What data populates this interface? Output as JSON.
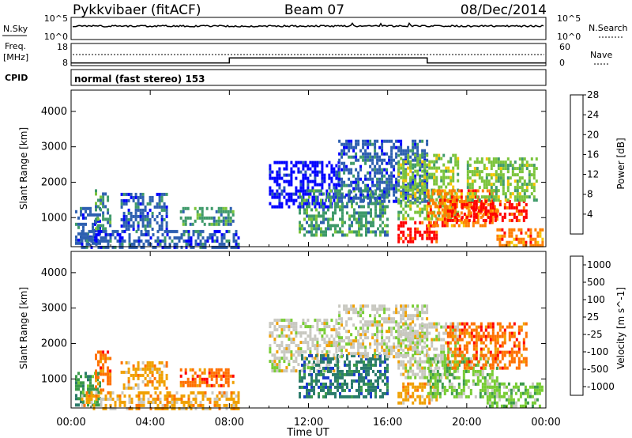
{
  "header": {
    "radar": "Pykkvibaer (fitACF)",
    "beam": "Beam 07",
    "date": "08/Dec/2014"
  },
  "sky_panel": {
    "left_label": "N.Sky",
    "right_label": "N.Search",
    "left_ticks": [
      "10^5",
      "10^0"
    ],
    "right_ticks": [
      "10^5",
      "10^0"
    ]
  },
  "freq_panel": {
    "left_label_1": "Freq.",
    "left_label_2": "[MHz]",
    "right_label": "Nave",
    "left_ticks": [
      "18",
      "8"
    ],
    "right_ticks": [
      "60",
      "0"
    ],
    "freq_steps": [
      {
        "t": 0,
        "mhz": 9.2
      },
      {
        "t": 8.0,
        "mhz": 9.2
      },
      {
        "t": 8.0,
        "mhz": 11.5
      },
      {
        "t": 18.0,
        "mhz": 11.5
      },
      {
        "t": 18.0,
        "mhz": 9.2
      },
      {
        "t": 24,
        "mhz": 9.2
      }
    ]
  },
  "cpid": {
    "label": "CPID",
    "text": "normal (fast stereo) 153"
  },
  "chart_data": [
    {
      "type": "heatmap",
      "name": "power",
      "ylabel": "Slant Range [km]",
      "xlabel": "Time UT",
      "xlim": [
        0,
        24
      ],
      "ylim": [
        180,
        4600
      ],
      "yticks": [
        "1000",
        "2000",
        "3000",
        "4000"
      ],
      "xticks": [
        "00:00",
        "04:00",
        "08:00",
        "12:00",
        "16:00",
        "20:00",
        "00:00"
      ],
      "colorbar": {
        "label": "Power [dB]",
        "ticks": [
          "4",
          "8",
          "12",
          "16",
          "20",
          "24",
          "28"
        ],
        "colors": [
          "#0000ff",
          "#2d5fb0",
          "#3f9a6a",
          "#7bc43b",
          "#f5c500",
          "#ff7f00",
          "#ff0000"
        ]
      },
      "regions": [
        {
          "t0": 0.2,
          "t1": 1.5,
          "r0": 250,
          "r1": 1300,
          "c": 1
        },
        {
          "t0": 1.2,
          "t1": 2.0,
          "r0": 700,
          "r1": 1800,
          "c": 2
        },
        {
          "t0": 2.5,
          "t1": 4.8,
          "r0": 700,
          "r1": 1700,
          "c": 1
        },
        {
          "t0": 0.5,
          "t1": 8.5,
          "r0": 200,
          "r1": 650,
          "c": 1
        },
        {
          "t0": 5.5,
          "t1": 8.2,
          "r0": 850,
          "r1": 1300,
          "c": 2
        },
        {
          "t0": 10.0,
          "t1": 13.5,
          "r0": 1300,
          "r1": 2600,
          "c": 0
        },
        {
          "t0": 11.5,
          "t1": 16.0,
          "r0": 500,
          "r1": 1800,
          "c": 2
        },
        {
          "t0": 13.5,
          "t1": 18.0,
          "r0": 1500,
          "r1": 3200,
          "c": 1
        },
        {
          "t0": 16.5,
          "t1": 19.5,
          "r0": 1000,
          "r1": 2800,
          "c": 3
        },
        {
          "t0": 16.5,
          "t1": 18.5,
          "r0": 300,
          "r1": 900,
          "c": 6
        },
        {
          "t0": 18.0,
          "t1": 21.5,
          "r0": 800,
          "r1": 1800,
          "c": 5
        },
        {
          "t0": 19.0,
          "t1": 23.0,
          "r0": 900,
          "r1": 1500,
          "c": 6
        },
        {
          "t0": 20.0,
          "t1": 23.5,
          "r0": 1500,
          "r1": 2700,
          "c": 3
        },
        {
          "t0": 21.5,
          "t1": 23.8,
          "r0": 200,
          "r1": 700,
          "c": 5
        }
      ]
    },
    {
      "type": "heatmap",
      "name": "velocity",
      "ylabel": "Slant Range [km]",
      "xlabel": "Time UT",
      "xlim": [
        0,
        24
      ],
      "ylim": [
        180,
        4600
      ],
      "yticks": [
        "1000",
        "2000",
        "3000",
        "4000"
      ],
      "xticks": [
        "00:00",
        "04:00",
        "08:00",
        "12:00",
        "16:00",
        "20:00",
        "00:00"
      ],
      "colorbar": {
        "label": "Velocity [m s^-1]",
        "ticks": [
          "1000",
          "500",
          "100",
          "25",
          "-25",
          "-100",
          "-500",
          "-1000"
        ],
        "colors": [
          "#1a3cc8",
          "#2a7a6a",
          "#3a9a4a",
          "#77cc33",
          "#c8c8c0",
          "#f0a000",
          "#ff7000",
          "#ff0000"
        ]
      },
      "regions": [
        {
          "t0": 0.2,
          "t1": 1.5,
          "r0": 250,
          "r1": 1200,
          "c": 2
        },
        {
          "t0": 1.2,
          "t1": 2.0,
          "r0": 700,
          "r1": 1800,
          "c": 6
        },
        {
          "t0": 2.5,
          "t1": 4.8,
          "r0": 700,
          "r1": 1500,
          "c": 5
        },
        {
          "t0": 0.5,
          "t1": 8.5,
          "r0": 200,
          "r1": 650,
          "c": 5
        },
        {
          "t0": 5.5,
          "t1": 8.2,
          "r0": 850,
          "r1": 1300,
          "c": 6
        },
        {
          "t0": 10.0,
          "t1": 13.5,
          "r0": 1200,
          "r1": 2700,
          "c": 4
        },
        {
          "t0": 11.5,
          "t1": 16.0,
          "r0": 500,
          "r1": 1700,
          "c": 1
        },
        {
          "t0": 13.5,
          "t1": 18.0,
          "r0": 1600,
          "r1": 3100,
          "c": 4
        },
        {
          "t0": 16.5,
          "t1": 19.5,
          "r0": 1000,
          "r1": 2600,
          "c": 4
        },
        {
          "t0": 16.5,
          "t1": 18.5,
          "r0": 300,
          "r1": 900,
          "c": 5
        },
        {
          "t0": 18.0,
          "t1": 21.5,
          "r0": 500,
          "r1": 1700,
          "c": 3
        },
        {
          "t0": 19.0,
          "t1": 23.0,
          "r0": 1300,
          "r1": 2600,
          "c": 6
        },
        {
          "t0": 21.0,
          "t1": 23.8,
          "r0": 200,
          "r1": 900,
          "c": 3
        }
      ]
    }
  ]
}
